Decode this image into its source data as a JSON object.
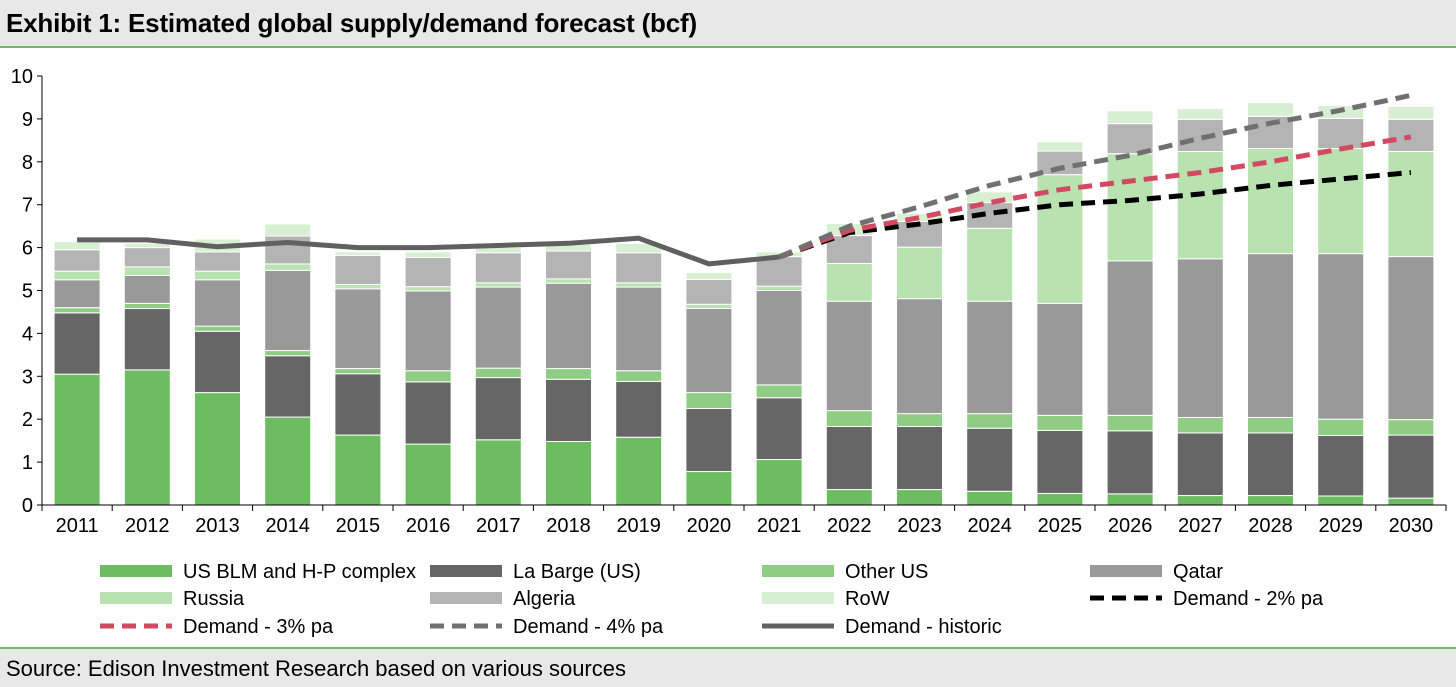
{
  "header": {
    "title": "Exhibit 1: Estimated global supply/demand forecast (bcf)"
  },
  "footer": {
    "source": "Source: Edison Investment Research based on various sources"
  },
  "chart_data": {
    "type": "bar",
    "stacked": true,
    "title": "Exhibit 1: Estimated global supply/demand forecast (bcf)",
    "xlabel": "",
    "ylabel": "",
    "ylim": [
      0,
      10
    ],
    "yticks": [
      0,
      1,
      2,
      3,
      4,
      5,
      6,
      7,
      8,
      9,
      10
    ],
    "grid": false,
    "legend_position": "bottom",
    "categories": [
      "2011",
      "2012",
      "2013",
      "2014",
      "2015",
      "2016",
      "2017",
      "2018",
      "2019",
      "2020",
      "2021",
      "2022",
      "2023",
      "2024",
      "2025",
      "2026",
      "2027",
      "2028",
      "2029",
      "2030"
    ],
    "series": [
      {
        "name": "US BLM and H-P complex",
        "color": "#6cbd5f",
        "values": [
          3.05,
          3.15,
          2.62,
          2.05,
          1.63,
          1.42,
          1.52,
          1.48,
          1.58,
          0.78,
          1.06,
          0.36,
          0.36,
          0.32,
          0.27,
          0.26,
          0.22,
          0.22,
          0.21,
          0.16
        ]
      },
      {
        "name": "La Barge (US)",
        "color": "#666666",
        "values": [
          1.43,
          1.43,
          1.43,
          1.43,
          1.43,
          1.45,
          1.45,
          1.45,
          1.3,
          1.47,
          1.44,
          1.47,
          1.47,
          1.47,
          1.47,
          1.47,
          1.46,
          1.46,
          1.41,
          1.47
        ]
      },
      {
        "name": "Other US",
        "color": "#8fcc84",
        "values": [
          0.12,
          0.12,
          0.12,
          0.12,
          0.12,
          0.26,
          0.22,
          0.25,
          0.25,
          0.37,
          0.3,
          0.37,
          0.3,
          0.34,
          0.35,
          0.36,
          0.36,
          0.36,
          0.38,
          0.36
        ]
      },
      {
        "name": "Qatar",
        "color": "#999999",
        "values": [
          0.65,
          0.65,
          1.08,
          1.87,
          1.86,
          1.86,
          1.89,
          1.99,
          1.95,
          1.96,
          2.2,
          2.55,
          2.68,
          2.62,
          2.61,
          3.6,
          3.7,
          3.82,
          3.86,
          3.8
        ]
      },
      {
        "name": "Russia",
        "color": "#b8e2b0",
        "values": [
          0.2,
          0.2,
          0.2,
          0.15,
          0.1,
          0.1,
          0.1,
          0.1,
          0.1,
          0.1,
          0.1,
          0.88,
          1.2,
          1.7,
          3.0,
          2.5,
          2.5,
          2.45,
          2.45,
          2.45
        ]
      },
      {
        "name": "Algeria",
        "color": "#b4b4b4",
        "values": [
          0.5,
          0.45,
          0.45,
          0.65,
          0.68,
          0.68,
          0.7,
          0.65,
          0.7,
          0.58,
          0.69,
          0.65,
          0.6,
          0.6,
          0.55,
          0.7,
          0.75,
          0.75,
          0.7,
          0.75
        ]
      },
      {
        "name": "RoW",
        "color": "#d9efd3",
        "values": [
          0.19,
          0.1,
          0.3,
          0.28,
          0.08,
          0.13,
          0.12,
          0.16,
          0.22,
          0.16,
          0.11,
          0.28,
          0.19,
          0.25,
          0.22,
          0.3,
          0.25,
          0.32,
          0.3,
          0.3
        ]
      }
    ],
    "lines": [
      {
        "name": "Demand - 2% pa",
        "color": "#000000",
        "style": "dashed",
        "x": [
          "2021",
          "2022",
          "2023",
          "2024",
          "2025",
          "2026",
          "2027",
          "2028",
          "2029",
          "2030"
        ],
        "values": [
          5.78,
          6.35,
          6.55,
          6.8,
          7.0,
          7.1,
          7.25,
          7.45,
          7.6,
          7.75
        ]
      },
      {
        "name": "Demand - 3% pa",
        "color": "#d24a62",
        "style": "dashed",
        "x": [
          "2021",
          "2022",
          "2023",
          "2024",
          "2025",
          "2026",
          "2027",
          "2028",
          "2029",
          "2030"
        ],
        "values": [
          5.78,
          6.4,
          6.7,
          7.05,
          7.35,
          7.55,
          7.75,
          8.0,
          8.3,
          8.58
        ]
      },
      {
        "name": "Demand - 4% pa",
        "color": "#707070",
        "style": "dashed",
        "x": [
          "2021",
          "2022",
          "2023",
          "2024",
          "2025",
          "2026",
          "2027",
          "2028",
          "2029",
          "2030"
        ],
        "values": [
          5.78,
          6.5,
          6.95,
          7.45,
          7.85,
          8.15,
          8.55,
          8.9,
          9.2,
          9.55
        ]
      },
      {
        "name": "Demand - historic",
        "color": "#606060",
        "style": "solid",
        "x": [
          "2011",
          "2012",
          "2013",
          "2014",
          "2015",
          "2016",
          "2017",
          "2018",
          "2019",
          "2020",
          "2021"
        ],
        "values": [
          6.18,
          6.18,
          6.02,
          6.12,
          6.0,
          6.0,
          6.05,
          6.1,
          6.22,
          5.62,
          5.78
        ]
      }
    ]
  }
}
